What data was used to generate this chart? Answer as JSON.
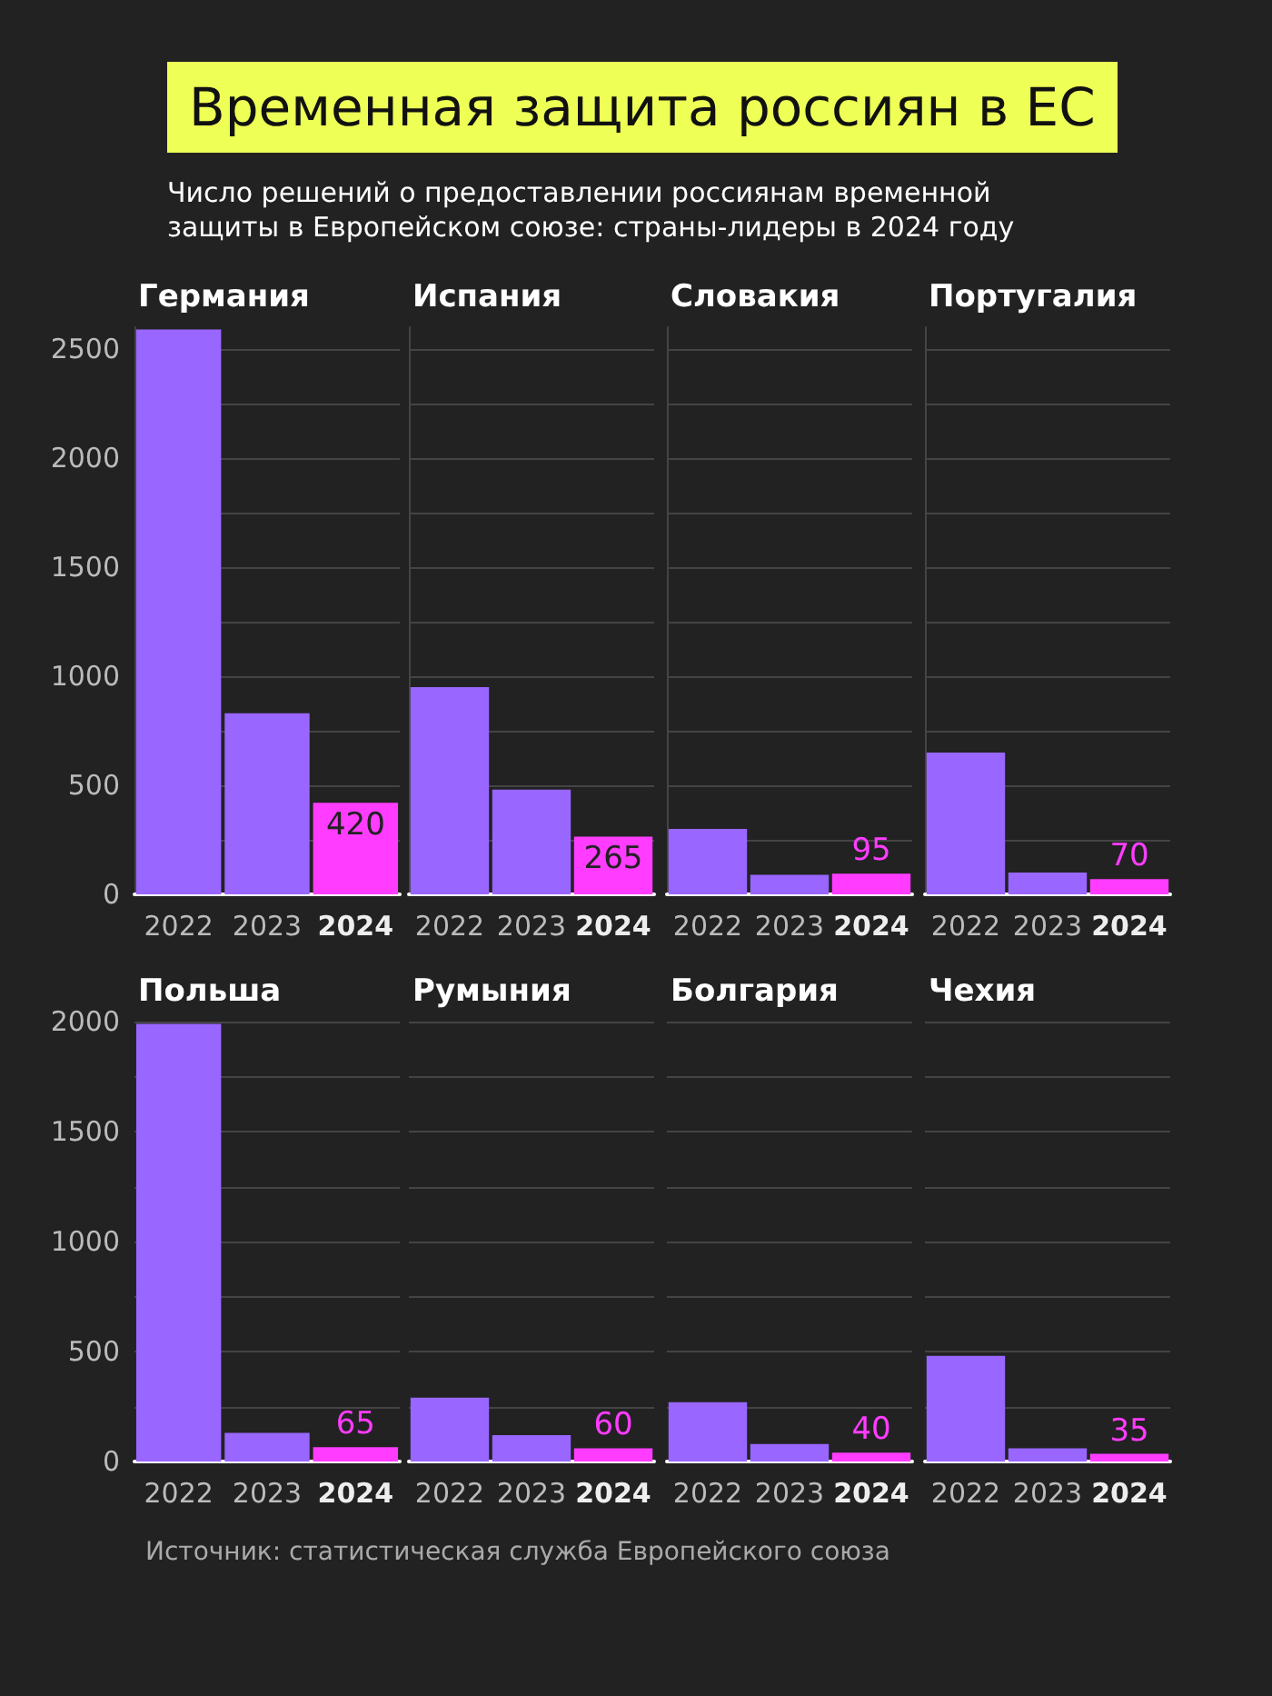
{
  "chart_data": [
    {
      "type": "other",
      "title": "Временная защита россиян в ЕС",
      "subtitle": "Число решений о предоставлении россиянам временной защиты в Европейском союзе: страны-лидеры в 2024 году",
      "annotations": [
        "Источник: статистическая служба Европейского союза"
      ]
    },
    {
      "type": "bar",
      "title": "Германия",
      "categories": [
        "2022",
        "2023",
        "2024"
      ],
      "values": [
        2590,
        830,
        420
      ],
      "colors": [
        "#9966ff",
        "#9966ff",
        "#ff3cff"
      ],
      "value_labels": [
        null,
        null,
        "420"
      ],
      "ylim": [
        0,
        2600
      ],
      "yticks": [
        0,
        {
          "value": 250,
          "label": null
        },
        500,
        {
          "value": 750,
          "label": null
        },
        1000,
        {
          "value": 1250,
          "label": null
        },
        1500,
        {
          "value": 1750,
          "label": null
        },
        2000,
        {
          "value": 2250,
          "label": null
        },
        2500
      ],
      "grid": "y"
    },
    {
      "type": "bar",
      "title": "Испания",
      "categories": [
        "2022",
        "2023",
        "2024"
      ],
      "values": [
        950,
        480,
        265
      ],
      "colors": [
        "#9966ff",
        "#9966ff",
        "#ff3cff"
      ],
      "value_labels": [
        null,
        null,
        "265"
      ],
      "ylim": [
        0,
        2600
      ],
      "yticks": [
        0,
        {
          "value": 250,
          "label": null
        },
        500,
        {
          "value": 750,
          "label": null
        },
        1000,
        {
          "value": 1250,
          "label": null
        },
        1500,
        {
          "value": 1750,
          "label": null
        },
        2000,
        {
          "value": 2250,
          "label": null
        },
        2500
      ],
      "grid": "y",
      "tick_labels": "x"
    },
    {
      "type": "bar",
      "title": "Словакия",
      "categories": [
        "2022",
        "2023",
        "2024"
      ],
      "values": [
        300,
        90,
        95
      ],
      "colors": [
        "#9966ff",
        "#9966ff",
        "#ff3cff"
      ],
      "value_labels": [
        null,
        null,
        "95"
      ],
      "ylim": [
        0,
        2600
      ],
      "yticks": [
        0,
        {
          "value": 250,
          "label": null
        },
        500,
        {
          "value": 750,
          "label": null
        },
        1000,
        {
          "value": 1250,
          "label": null
        },
        1500,
        {
          "value": 1750,
          "label": null
        },
        2000,
        {
          "value": 2250,
          "label": null
        },
        2500
      ],
      "grid": "y",
      "tick_labels": "x"
    },
    {
      "type": "bar",
      "title": "Португалия",
      "categories": [
        "2022",
        "2023",
        "2024"
      ],
      "values": [
        650,
        100,
        70
      ],
      "colors": [
        "#9966ff",
        "#9966ff",
        "#ff3cff"
      ],
      "value_labels": [
        null,
        null,
        "70"
      ],
      "ylim": [
        0,
        2600
      ],
      "yticks": [
        0,
        {
          "value": 250,
          "label": null
        },
        500,
        {
          "value": 750,
          "label": null
        },
        1000,
        {
          "value": 1250,
          "label": null
        },
        1500,
        {
          "value": 1750,
          "label": null
        },
        2000,
        {
          "value": 2250,
          "label": null
        },
        2500
      ],
      "grid": "y",
      "tick_labels": "x"
    },
    {
      "type": "bar",
      "title": "Польша",
      "categories": [
        "2022",
        "2023",
        "2024"
      ],
      "values": [
        1990,
        130,
        65
      ],
      "colors": [
        "#9966ff",
        "#9966ff",
        "#ff3cff"
      ],
      "value_labels": [
        null,
        null,
        "65"
      ],
      "ylim": [
        0,
        2000
      ],
      "yticks": [
        0,
        {
          "value": 250,
          "label": null
        },
        500,
        {
          "value": 750,
          "label": null
        },
        1000,
        {
          "value": 1250,
          "label": null
        },
        1500,
        {
          "value": 1750,
          "label": null
        },
        2000
      ],
      "grid": "y"
    },
    {
      "type": "bar",
      "title": "Румыния",
      "categories": [
        "2022",
        "2023",
        "2024"
      ],
      "values": [
        290,
        120,
        60
      ],
      "colors": [
        "#9966ff",
        "#9966ff",
        "#ff3cff"
      ],
      "value_labels": [
        null,
        null,
        "60"
      ],
      "ylim": [
        0,
        2000
      ],
      "yticks": [
        0,
        {
          "value": 250,
          "label": null
        },
        500,
        {
          "value": 750,
          "label": null
        },
        1000,
        {
          "value": 1250,
          "label": null
        },
        1500,
        {
          "value": 1750,
          "label": null
        },
        2000
      ],
      "grid": "y",
      "tick_labels": "x"
    },
    {
      "type": "bar",
      "title": "Болгария",
      "categories": [
        "2022",
        "2023",
        "2024"
      ],
      "values": [
        270,
        80,
        40
      ],
      "colors": [
        "#9966ff",
        "#9966ff",
        "#ff3cff"
      ],
      "value_labels": [
        null,
        null,
        "40"
      ],
      "ylim": [
        0,
        2000
      ],
      "yticks": [
        0,
        {
          "value": 250,
          "label": null
        },
        500,
        {
          "value": 750,
          "label": null
        },
        1000,
        {
          "value": 1250,
          "label": null
        },
        1500,
        {
          "value": 1750,
          "label": null
        },
        2000
      ],
      "grid": "y",
      "tick_labels": "x"
    },
    {
      "type": "bar",
      "title": "Чехия",
      "categories": [
        "2022",
        "2023",
        "2024"
      ],
      "values": [
        480,
        60,
        35
      ],
      "colors": [
        "#9966ff",
        "#9966ff",
        "#ff3cff"
      ],
      "value_labels": [
        null,
        null,
        "35"
      ],
      "ylim": [
        0,
        2000
      ],
      "yticks": [
        0,
        {
          "value": 250,
          "label": null
        },
        500,
        {
          "value": 750,
          "label": null
        },
        1000,
        {
          "value": 1250,
          "label": null
        },
        1500,
        {
          "value": 1750,
          "label": null
        },
        2000
      ],
      "grid": "y",
      "tick_labels": "x"
    }
  ]
}
